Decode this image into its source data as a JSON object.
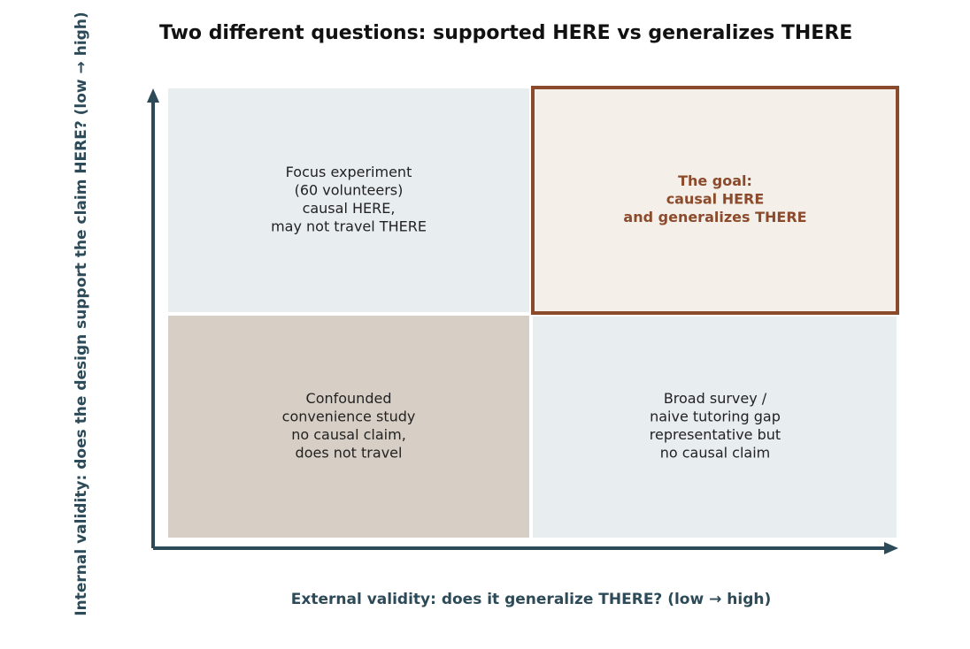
{
  "title": "Two different questions: supported HERE vs generalizes THERE",
  "y_axis_label": "Internal validity: does the design support the claim HERE?  (low → high)",
  "x_axis_label": "External validity: does it generalize THERE?  (low → high)",
  "quadrants": [
    {
      "position": "top-left",
      "lines": [
        "Focus experiment",
        "(60 volunteers)",
        "causal HERE,",
        "may not travel THERE"
      ]
    },
    {
      "position": "top-right",
      "lines": [
        "The goal:",
        "causal HERE",
        "and generalizes THERE"
      ]
    },
    {
      "position": "bottom-left",
      "lines": [
        "Confounded",
        "convenience study",
        "no causal claim,",
        "does not travel"
      ]
    },
    {
      "position": "bottom-right",
      "lines": [
        "Broad survey /",
        "naive tutoring gap",
        "representative but",
        "no causal claim"
      ]
    }
  ]
}
